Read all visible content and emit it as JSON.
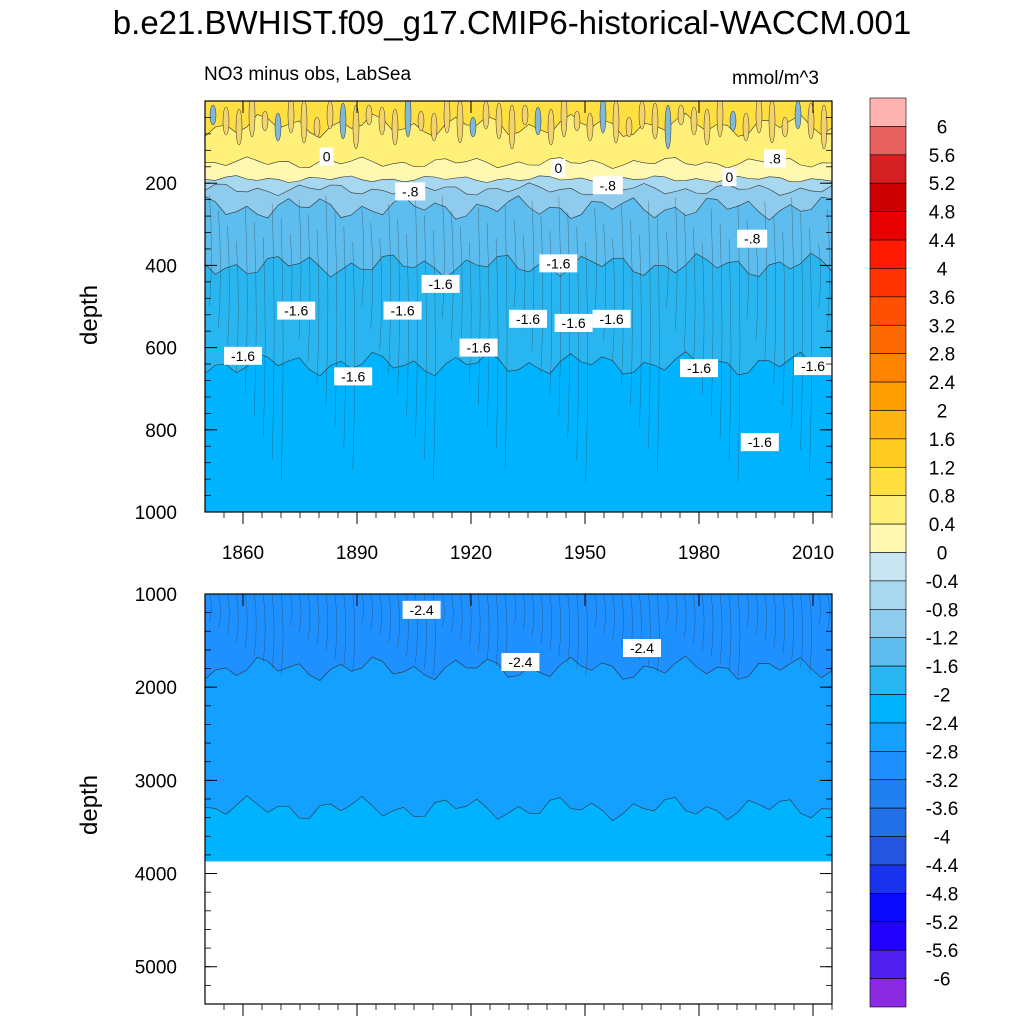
{
  "title": "b.e21.BWHIST.f09_g17.CMIP6-historical-WACCM.001",
  "chart_data": [
    {
      "type": "contour",
      "panel": "upper",
      "subtitle_left": "NO3 minus obs, LabSea",
      "subtitle_right": "mmol/m^3",
      "ylabel": "depth",
      "xlabel": "",
      "xlim": [
        1850,
        2015
      ],
      "ylim": [
        1000,
        0
      ],
      "x_ticks": [
        "1860",
        "1890",
        "1920",
        "1950",
        "1980",
        "2010"
      ],
      "y_ticks": [
        "200",
        "400",
        "600",
        "800",
        "1000"
      ],
      "bands": [
        {
          "depth_top": 0,
          "depth_bottom": 60,
          "value": 1.2
        },
        {
          "depth_top": 60,
          "depth_bottom": 150,
          "value": 0.8
        },
        {
          "depth_top": 150,
          "depth_bottom": 190,
          "value": 0.4
        },
        {
          "depth_top": 190,
          "depth_bottom": 215,
          "value": -0.4
        },
        {
          "depth_top": 215,
          "depth_bottom": 260,
          "value": -0.8
        },
        {
          "depth_top": 260,
          "depth_bottom": 400,
          "value": -1.2
        },
        {
          "depth_top": 400,
          "depth_bottom": 640,
          "value": -1.6
        },
        {
          "depth_top": 640,
          "depth_bottom": 1000,
          "value": -2.0
        }
      ],
      "contour_labels": [
        {
          "text": "0",
          "year": 1882,
          "depth": 135
        },
        {
          "text": ".8",
          "year": 2000,
          "depth": 140
        },
        {
          "text": "0",
          "year": 1943,
          "depth": 163
        },
        {
          "text": "0",
          "year": 1988,
          "depth": 185
        },
        {
          "text": "-.8",
          "year": 1904,
          "depth": 220
        },
        {
          "text": "-.8",
          "year": 1956,
          "depth": 205
        },
        {
          "text": "-.8",
          "year": 1994,
          "depth": 335
        },
        {
          "text": "-1.6",
          "year": 1874,
          "depth": 510
        },
        {
          "text": "-1.6",
          "year": 1902,
          "depth": 510
        },
        {
          "text": "-1.6",
          "year": 1912,
          "depth": 445
        },
        {
          "text": "-1.6",
          "year": 1943,
          "depth": 395
        },
        {
          "text": "-1.6",
          "year": 1935,
          "depth": 530
        },
        {
          "text": "-1.6",
          "year": 1947,
          "depth": 540
        },
        {
          "text": "-1.6",
          "year": 1957,
          "depth": 530
        },
        {
          "text": "-1.6",
          "year": 1922,
          "depth": 600
        },
        {
          "text": "-1.6",
          "year": 1860,
          "depth": 620
        },
        {
          "text": "-1.6",
          "year": 1889,
          "depth": 670
        },
        {
          "text": "-1.6",
          "year": 1980,
          "depth": 650
        },
        {
          "text": "-1.6",
          "year": 2010,
          "depth": 645
        },
        {
          "text": "-1.6",
          "year": 1996,
          "depth": 830
        }
      ]
    },
    {
      "type": "contour",
      "panel": "lower",
      "ylabel": "depth",
      "xlim": [
        1850,
        2015
      ],
      "ylim": [
        5400,
        1000
      ],
      "y_ticks": [
        "1000",
        "2000",
        "3000",
        "4000",
        "5000"
      ],
      "bands": [
        {
          "depth_top": 1000,
          "depth_bottom": 1800,
          "value": -2.8
        },
        {
          "depth_top": 1800,
          "depth_bottom": 3300,
          "value": -2.4
        },
        {
          "depth_top": 3300,
          "depth_bottom": 3870,
          "value": -2.0
        }
      ],
      "ocean_floor_depth": 3870,
      "contour_labels": [
        {
          "text": "-2.4",
          "year": 1907,
          "depth": 1170
        },
        {
          "text": "-2.4",
          "year": 1933,
          "depth": 1730
        },
        {
          "text": "-2.4",
          "year": 1965,
          "depth": 1580
        }
      ]
    }
  ],
  "colorbar": {
    "levels": [
      "6",
      "5.6",
      "5.2",
      "4.8",
      "4.4",
      "4",
      "3.6",
      "3.2",
      "2.8",
      "2.4",
      "2",
      "1.6",
      "1.2",
      "0.8",
      "0.4",
      "0",
      "-0.4",
      "-0.8",
      "-1.2",
      "-1.6",
      "-2",
      "-2.4",
      "-2.8",
      "-3.2",
      "-3.6",
      "-4",
      "-4.4",
      "-4.8",
      "-5.2",
      "-5.6",
      "-6"
    ],
    "colors": [
      "#ffb3b3",
      "#e86060",
      "#d42020",
      "#cc0000",
      "#e80000",
      "#ff1a00",
      "#ff3300",
      "#ff5000",
      "#ff6a00",
      "#ff8400",
      "#ffa000",
      "#ffb414",
      "#ffcc22",
      "#ffe040",
      "#fff07a",
      "#fff8b0",
      "#c8e6f2",
      "#a8d8f0",
      "#8ecbed",
      "#5cbdee",
      "#29b6f0",
      "#00b3ff",
      "#14a0ff",
      "#1e90ff",
      "#2080f0",
      "#2270e8",
      "#2455e0",
      "#1a33ee",
      "#0a0aff",
      "#2200ff",
      "#5020f0",
      "#8a2be2"
    ]
  }
}
